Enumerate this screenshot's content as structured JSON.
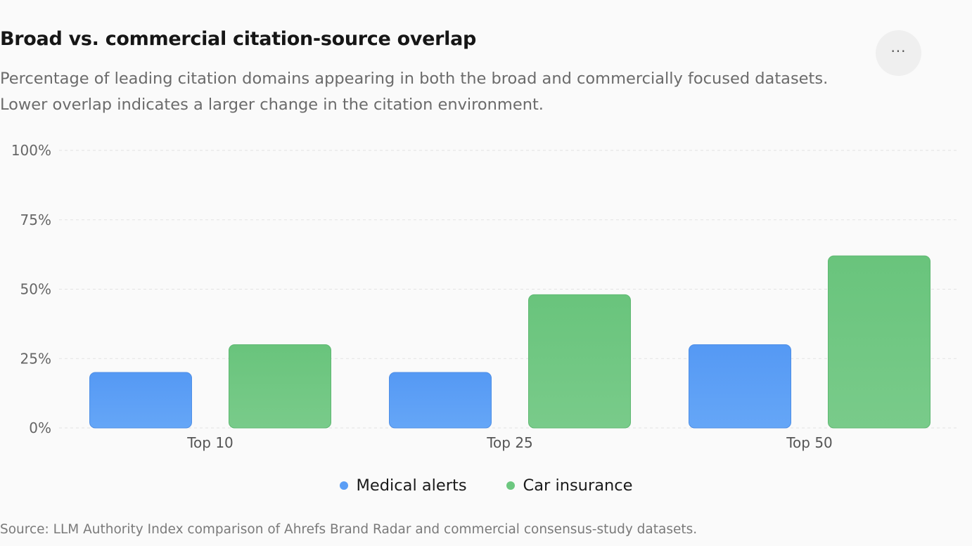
{
  "header": {
    "title": "Broad vs. commercial citation-source overlap",
    "subtitle_line1": "Percentage of leading citation domains appearing in both the broad and commercially focused datasets.",
    "subtitle_line2": "Lower overlap indicates a larger change in the citation environment.",
    "more_button_glyph": "···"
  },
  "chart_data": {
    "type": "bar",
    "title": "Broad vs. commercial citation-source overlap",
    "categories": [
      "Top 10",
      "Top 25",
      "Top 50"
    ],
    "series": [
      {
        "name": "Medical alerts",
        "values": [
          20,
          20,
          30
        ],
        "color": "#5b9ef5"
      },
      {
        "name": "Car insurance",
        "values": [
          30,
          48,
          62
        ],
        "color": "#6cc77f"
      }
    ],
    "ylim": [
      0,
      100
    ],
    "yticks": [
      0,
      25,
      50,
      75,
      100
    ],
    "ytick_labels": [
      "0%",
      "25%",
      "50%",
      "75%",
      "100%"
    ],
    "grid": true,
    "legend": "bottom"
  },
  "legend": {
    "items": [
      {
        "label": "Medical alerts",
        "color": "#5b9ef5"
      },
      {
        "label": "Car insurance",
        "color": "#6cc77f"
      }
    ]
  },
  "footer": {
    "source": "Source: LLM Authority Index comparison of Ahrefs Brand Radar and commercial consensus-study datasets."
  }
}
